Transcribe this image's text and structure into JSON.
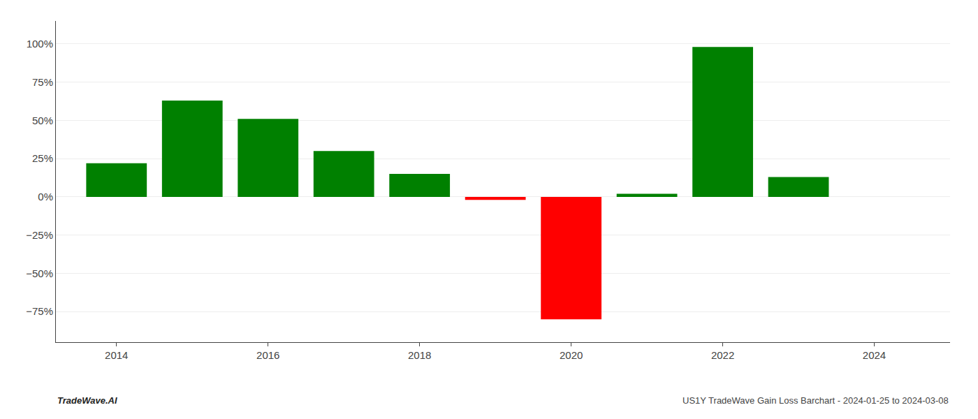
{
  "chart_data": {
    "type": "bar",
    "x": [
      2014,
      2015,
      2016,
      2017,
      2018,
      2019,
      2020,
      2021,
      2022,
      2023
    ],
    "values": [
      0.22,
      0.63,
      0.51,
      0.3,
      0.15,
      -0.02,
      -0.8,
      0.02,
      0.98,
      0.13
    ],
    "colors": [
      "#008000",
      "#008000",
      "#008000",
      "#008000",
      "#008000",
      "#ff0000",
      "#ff0000",
      "#008000",
      "#008000",
      "#008000"
    ],
    "xlim": [
      2013.2,
      2025.0
    ],
    "xticks": [
      2014,
      2016,
      2018,
      2020,
      2022,
      2024
    ],
    "ylim": [
      -0.95,
      1.15
    ],
    "yticks": [
      {
        "value": -0.75,
        "label": "−75%"
      },
      {
        "value": -0.5,
        "label": "−50%"
      },
      {
        "value": -0.25,
        "label": "−25%"
      },
      {
        "value": 0.0,
        "label": "0%"
      },
      {
        "value": 0.25,
        "label": "25%"
      },
      {
        "value": 0.5,
        "label": "50%"
      },
      {
        "value": 0.75,
        "label": "75%"
      },
      {
        "value": 1.0,
        "label": "100%"
      }
    ],
    "grid": true,
    "annotations": [
      "TradeWave.AI",
      "US1Y TradeWave Gain Loss Barchart - 2024-01-25 to 2024-03-08"
    ]
  }
}
